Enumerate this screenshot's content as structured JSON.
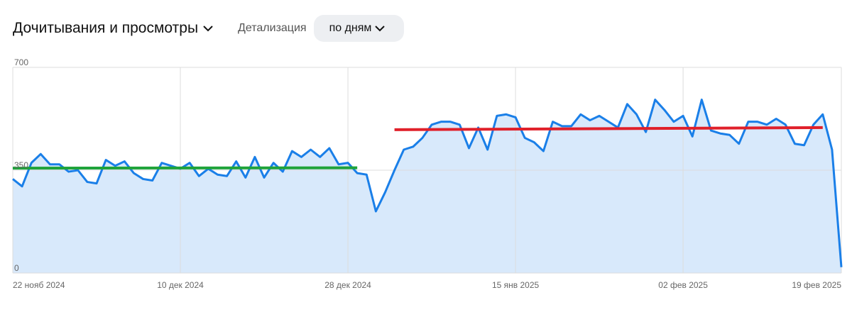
{
  "header": {
    "title": "Дочитывания и просмотры",
    "detail_label": "Детализация",
    "detail_value": "по дням"
  },
  "chart_data": {
    "type": "area",
    "x": [
      "2024-11-22",
      "2024-11-23",
      "2024-11-24",
      "2024-11-25",
      "2024-11-26",
      "2024-11-27",
      "2024-11-28",
      "2024-11-29",
      "2024-11-30",
      "2024-12-01",
      "2024-12-02",
      "2024-12-03",
      "2024-12-04",
      "2024-12-05",
      "2024-12-06",
      "2024-12-07",
      "2024-12-08",
      "2024-12-09",
      "2024-12-10",
      "2024-12-11",
      "2024-12-12",
      "2024-12-13",
      "2024-12-14",
      "2024-12-15",
      "2024-12-16",
      "2024-12-17",
      "2024-12-18",
      "2024-12-19",
      "2024-12-20",
      "2024-12-21",
      "2024-12-22",
      "2024-12-23",
      "2024-12-24",
      "2024-12-25",
      "2024-12-26",
      "2024-12-27",
      "2024-12-28",
      "2024-12-29",
      "2024-12-30",
      "2024-12-31",
      "2025-01-01",
      "2025-01-02",
      "2025-01-03",
      "2025-01-04",
      "2025-01-05",
      "2025-01-06",
      "2025-01-07",
      "2025-01-08",
      "2025-01-09",
      "2025-01-10",
      "2025-01-11",
      "2025-01-12",
      "2025-01-13",
      "2025-01-14",
      "2025-01-15",
      "2025-01-16",
      "2025-01-17",
      "2025-01-18",
      "2025-01-19",
      "2025-01-20",
      "2025-01-21",
      "2025-01-22",
      "2025-01-23",
      "2025-01-24",
      "2025-01-25",
      "2025-01-26",
      "2025-01-27",
      "2025-01-28",
      "2025-01-29",
      "2025-01-30",
      "2025-01-31",
      "2025-02-01",
      "2025-02-02",
      "2025-02-03",
      "2025-02-04",
      "2025-02-05",
      "2025-02-06",
      "2025-02-07",
      "2025-02-08",
      "2025-02-09",
      "2025-02-10",
      "2025-02-11",
      "2025-02-12",
      "2025-02-13",
      "2025-02-14",
      "2025-02-15",
      "2025-02-16",
      "2025-02-17",
      "2025-02-18",
      "2025-02-19"
    ],
    "series": [
      {
        "color": "#1a7fe8",
        "fill": "#d8e9fb",
        "values": [
          320,
          295,
          375,
          405,
          370,
          370,
          345,
          350,
          310,
          305,
          385,
          365,
          380,
          340,
          320,
          315,
          375,
          365,
          355,
          375,
          330,
          355,
          335,
          330,
          380,
          325,
          395,
          325,
          375,
          345,
          415,
          395,
          420,
          395,
          425,
          370,
          375,
          340,
          335,
          210,
          275,
          350,
          420,
          430,
          460,
          505,
          515,
          515,
          505,
          425,
          495,
          420,
          535,
          540,
          530,
          460,
          445,
          415,
          515,
          500,
          500,
          540,
          520,
          535,
          515,
          495,
          575,
          540,
          480,
          590,
          555,
          515,
          535,
          465,
          590,
          485,
          475,
          470,
          440,
          515,
          515,
          505,
          525,
          505,
          440,
          435,
          505,
          540,
          420,
          20
        ]
      }
    ],
    "trend_lines": [
      {
        "color": "#1fa33a",
        "x": [
          "2024-11-22",
          "2024-12-29"
        ],
        "values": [
          357,
          358
        ]
      },
      {
        "color": "#e0202a",
        "x": [
          "2025-01-02",
          "2025-02-17"
        ],
        "values": [
          488,
          495
        ]
      }
    ],
    "xlim": [
      "2024-11-22",
      "2025-02-19"
    ],
    "xticks": [
      {
        "value": "2024-11-22",
        "label": "22 нояб 2024"
      },
      {
        "value": "2024-12-10",
        "label": "10 дек 2024"
      },
      {
        "value": "2024-12-28",
        "label": "28 дек 2024"
      },
      {
        "value": "2025-01-15",
        "label": "15 янв 2025"
      },
      {
        "value": "2025-02-02",
        "label": "02 фев 2025"
      },
      {
        "value": "2025-02-19",
        "label": "19 фев 2025"
      }
    ],
    "ylim": [
      0,
      700
    ],
    "yticks": [
      0,
      350,
      700
    ],
    "grid": true
  }
}
